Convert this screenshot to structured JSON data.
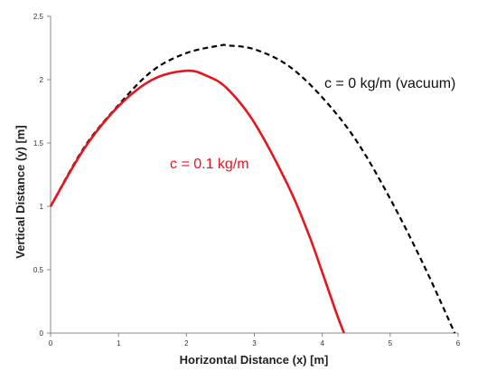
{
  "chart_data": {
    "type": "line",
    "xlabel": "Horizontal Distance (x) [m]",
    "ylabel": "Vertical Distance (y) [m]",
    "xlim": [
      0,
      6
    ],
    "ylim": [
      0,
      2.5
    ],
    "x_ticks": [
      "0",
      "1",
      "2",
      "3",
      "4",
      "5",
      "6"
    ],
    "y_ticks": [
      "0",
      "0.5",
      "1",
      "1.5",
      "2",
      "2.5"
    ],
    "grid": false,
    "series": [
      {
        "name": "c = 0 kg/m (vacuum)",
        "color": "#000000",
        "dash": "dashed",
        "x": [
          0,
          0.5,
          1,
          1.5,
          2,
          2.5,
          2.6,
          3,
          3.5,
          4,
          4.5,
          5,
          5.5,
          5.95
        ],
        "y": [
          1.0,
          1.47,
          1.8,
          2.07,
          2.21,
          2.27,
          2.27,
          2.24,
          2.11,
          1.86,
          1.52,
          1.06,
          0.53,
          0.0
        ]
      },
      {
        "name": "c = 0.1 kg/m",
        "color": "#e8141b",
        "dash": "solid",
        "x": [
          0,
          0.5,
          1,
          1.5,
          2,
          2.3,
          2.6,
          3,
          3.5,
          3.8,
          4,
          4.2,
          4.32
        ],
        "y": [
          1.0,
          1.46,
          1.79,
          2.0,
          2.07,
          2.03,
          1.93,
          1.66,
          1.16,
          0.78,
          0.48,
          0.17,
          0.0
        ]
      }
    ]
  }
}
